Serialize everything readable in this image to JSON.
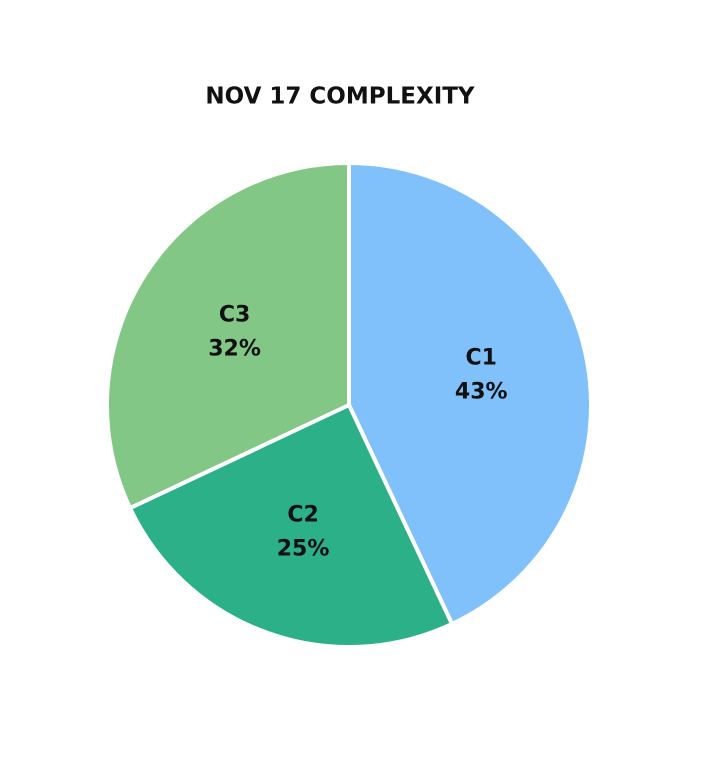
{
  "chart_data": {
    "type": "pie",
    "title": "NOV 17 COMPLEXITY",
    "categories": [
      "C1",
      "C2",
      "C3"
    ],
    "values": [
      43,
      25,
      32
    ],
    "value_labels": [
      "43%",
      "25%",
      "32%"
    ],
    "colors": [
      "#80c1fc",
      "#2bb088",
      "#82c785"
    ]
  }
}
